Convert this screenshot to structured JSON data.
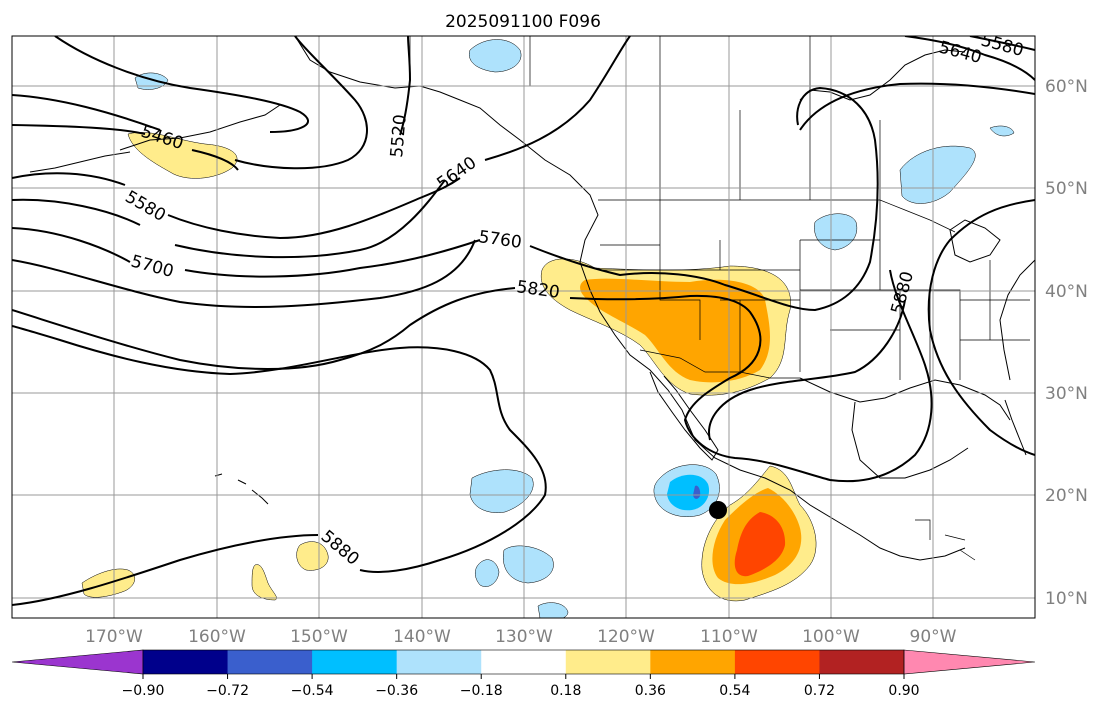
{
  "title": "2025091100 F096",
  "map": {
    "lon_labels": [
      "170°W",
      "160°W",
      "150°W",
      "140°W",
      "130°W",
      "120°W",
      "110°W",
      "100°W",
      "90°W"
    ],
    "lat_labels": [
      "60°N",
      "50°N",
      "40°N",
      "30°N",
      "20°N",
      "10°N"
    ],
    "contour_labels": [
      "5460",
      "5520",
      "5580",
      "5640",
      "5640",
      "5700",
      "5760",
      "5820",
      "5880",
      "5880",
      "5580"
    ]
  },
  "colorbar": {
    "ticks": [
      "−0.90",
      "−0.72",
      "−0.54",
      "−0.36",
      "−0.18",
      "0.18",
      "0.36",
      "0.54",
      "0.72",
      "0.90"
    ],
    "colors": [
      "#9b35cf",
      "#00008b",
      "#3a5fcd",
      "#00bfff",
      "#aee2fc",
      "#ffffff",
      "#ffec8b",
      "#ffa500",
      "#ff4500",
      "#b22222",
      "#ff88b0"
    ]
  }
}
